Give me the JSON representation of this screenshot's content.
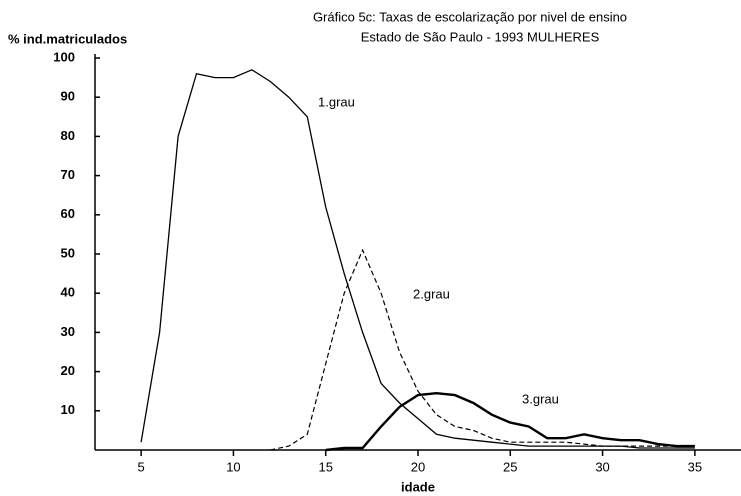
{
  "chart_data": {
    "type": "line",
    "title": "Gráfico 5c: Taxas de escolarização por nivel de ensino",
    "subtitle": "Estado de São Paulo - 1993  MULHERES",
    "y_label": "% ind.matriculados",
    "x_label": "idade",
    "x": [
      5,
      6,
      7,
      8,
      9,
      10,
      11,
      12,
      13,
      14,
      15,
      16,
      17,
      18,
      19,
      20,
      21,
      22,
      23,
      24,
      25,
      26,
      27,
      28,
      29,
      30,
      31,
      32,
      33,
      34,
      35
    ],
    "series": [
      {
        "name": "1.grau",
        "color": "#000000",
        "line_style": "solid",
        "values": [
          2,
          30,
          80,
          96,
          95,
          95,
          97,
          94,
          90,
          85,
          62,
          45,
          30,
          17,
          12,
          8,
          4,
          3,
          2.5,
          2,
          1.5,
          1,
          1,
          1,
          1,
          1,
          1,
          0.5,
          0.5,
          0.5,
          0.5
        ]
      },
      {
        "name": "2.grau",
        "color": "#000000",
        "line_style": "dashed",
        "values": [
          null,
          null,
          null,
          null,
          null,
          null,
          null,
          0,
          1,
          4,
          22,
          40,
          51,
          40,
          25,
          15,
          9,
          6,
          5,
          3,
          2,
          2,
          2,
          2,
          1.5,
          1,
          1,
          1,
          1,
          1,
          1
        ]
      },
      {
        "name": "3.grau",
        "color": "#000000",
        "line_style": "bold",
        "values": [
          null,
          null,
          null,
          null,
          null,
          null,
          null,
          null,
          null,
          null,
          0,
          0.5,
          0.5,
          6,
          11,
          14,
          14.5,
          14,
          12,
          9,
          7,
          6,
          3,
          3,
          4,
          3,
          2.5,
          2.5,
          1.5,
          1,
          1
        ]
      }
    ],
    "xlim": [
      2.5,
      37.5
    ],
    "xticks": [
      5,
      10,
      15,
      20,
      25,
      30,
      35
    ],
    "ylim": [
      0,
      100
    ],
    "yticks": [
      10,
      20,
      30,
      40,
      50,
      60,
      70,
      80,
      90,
      100
    ]
  }
}
